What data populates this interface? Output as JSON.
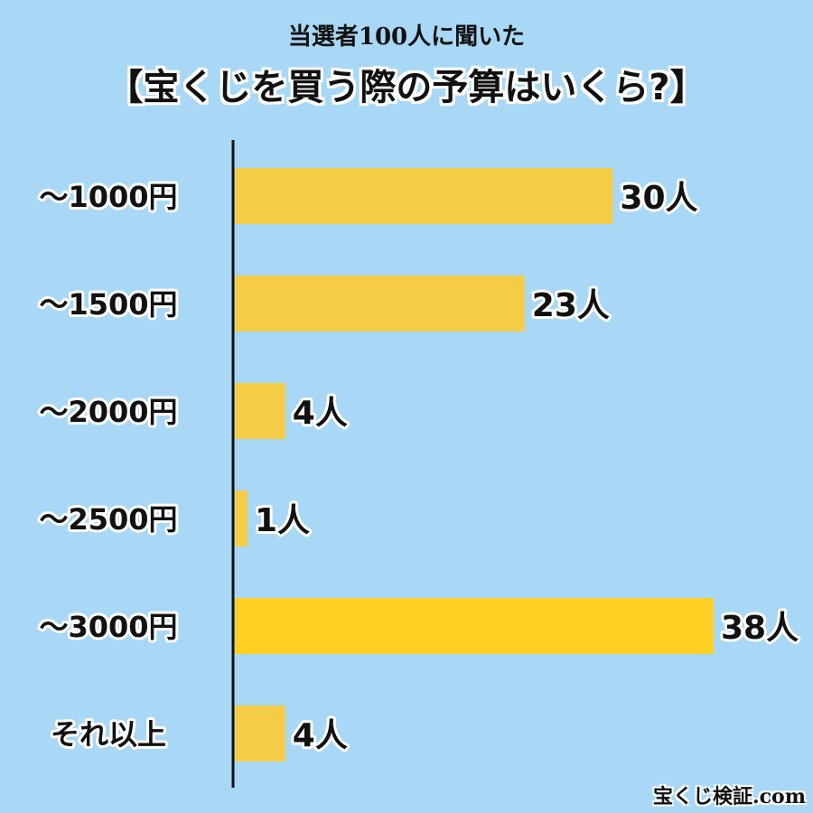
{
  "header": {
    "subtitle": "当選者100人に聞いた",
    "title": "【宝くじを買う際の予算はいくら?】"
  },
  "watermark": "宝くじ検証.com",
  "colors": {
    "background": "#a8d8f5",
    "bar": "#f5cc45",
    "bar_highlight": "#fdd023",
    "axis": "#111111",
    "text": "#111111",
    "outline": "#ffffff"
  },
  "chart_data": {
    "type": "bar",
    "orientation": "horizontal",
    "title": "【宝くじを買う際の予算はいくら?】",
    "subtitle": "当選者100人に聞いた",
    "categories": [
      "〜1000円",
      "〜1500円",
      "〜2000円",
      "〜2500円",
      "〜3000円",
      "それ以上"
    ],
    "values": [
      30,
      23,
      4,
      1,
      38,
      4
    ],
    "value_labels": [
      "30人",
      "23人",
      "4人",
      "1人",
      "38人",
      "4人"
    ],
    "highlight_index": 4,
    "xlim": [
      0,
      38
    ],
    "grid": false,
    "legend": "none"
  }
}
